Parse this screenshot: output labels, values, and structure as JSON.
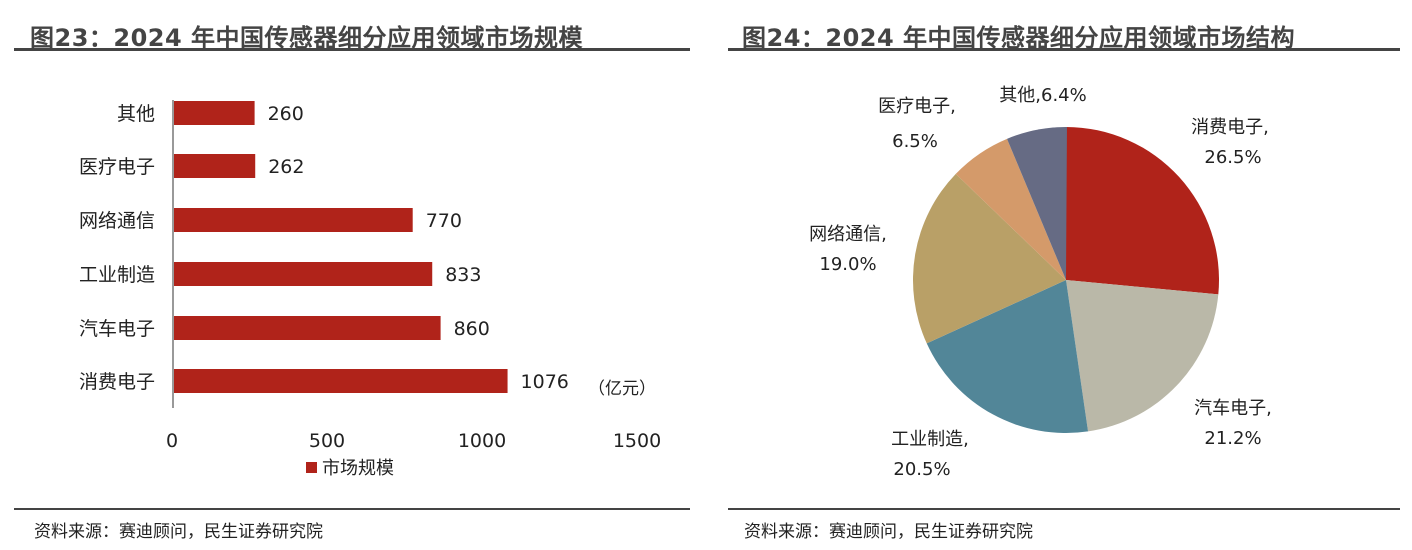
{
  "chart_data": [
    {
      "type": "bar",
      "orientation": "horizontal",
      "title": "图23：2024 年中国传感器细分应用领域市场规模",
      "categories": [
        "其他",
        "医疗电子",
        "网络通信",
        "工业制造",
        "汽车电子",
        "消费电子"
      ],
      "values": [
        260,
        262,
        770,
        833,
        860,
        1076
      ],
      "series": [
        {
          "name": "市场规模",
          "color": "#B0231A"
        }
      ],
      "unit": "（亿元）",
      "xlim": [
        0,
        1500
      ],
      "xticks": [
        "0",
        "500",
        "1000",
        "1500"
      ],
      "legend": "bottom"
    },
    {
      "type": "pie",
      "title": "图24：2024 年中国传感器细分应用领域市场结构",
      "slices": [
        {
          "label": "消费电子,",
          "value": 26.5,
          "pct": "26.5%",
          "color": "#B0231A"
        },
        {
          "label": "汽车电子,",
          "value": 21.2,
          "pct": "21.2%",
          "color": "#BAB8A8"
        },
        {
          "label": "工业制造,",
          "value": 20.5,
          "pct": "20.5%",
          "color": "#528698"
        },
        {
          "label": "网络通信,",
          "value": 19.0,
          "pct": "19.0%",
          "color": "#B9A067"
        },
        {
          "label": "医疗电子,",
          "value": 6.5,
          "pct": "6.5%",
          "color": "#D49A6A"
        },
        {
          "label": "其他,",
          "value": 6.4,
          "pct": "6.4%",
          "color": "#666B84"
        }
      ]
    }
  ],
  "source_left": "资料来源：赛迪顾问，民生证券研究院",
  "source_right": "资料来源：赛迪顾问，民生证券研究院"
}
